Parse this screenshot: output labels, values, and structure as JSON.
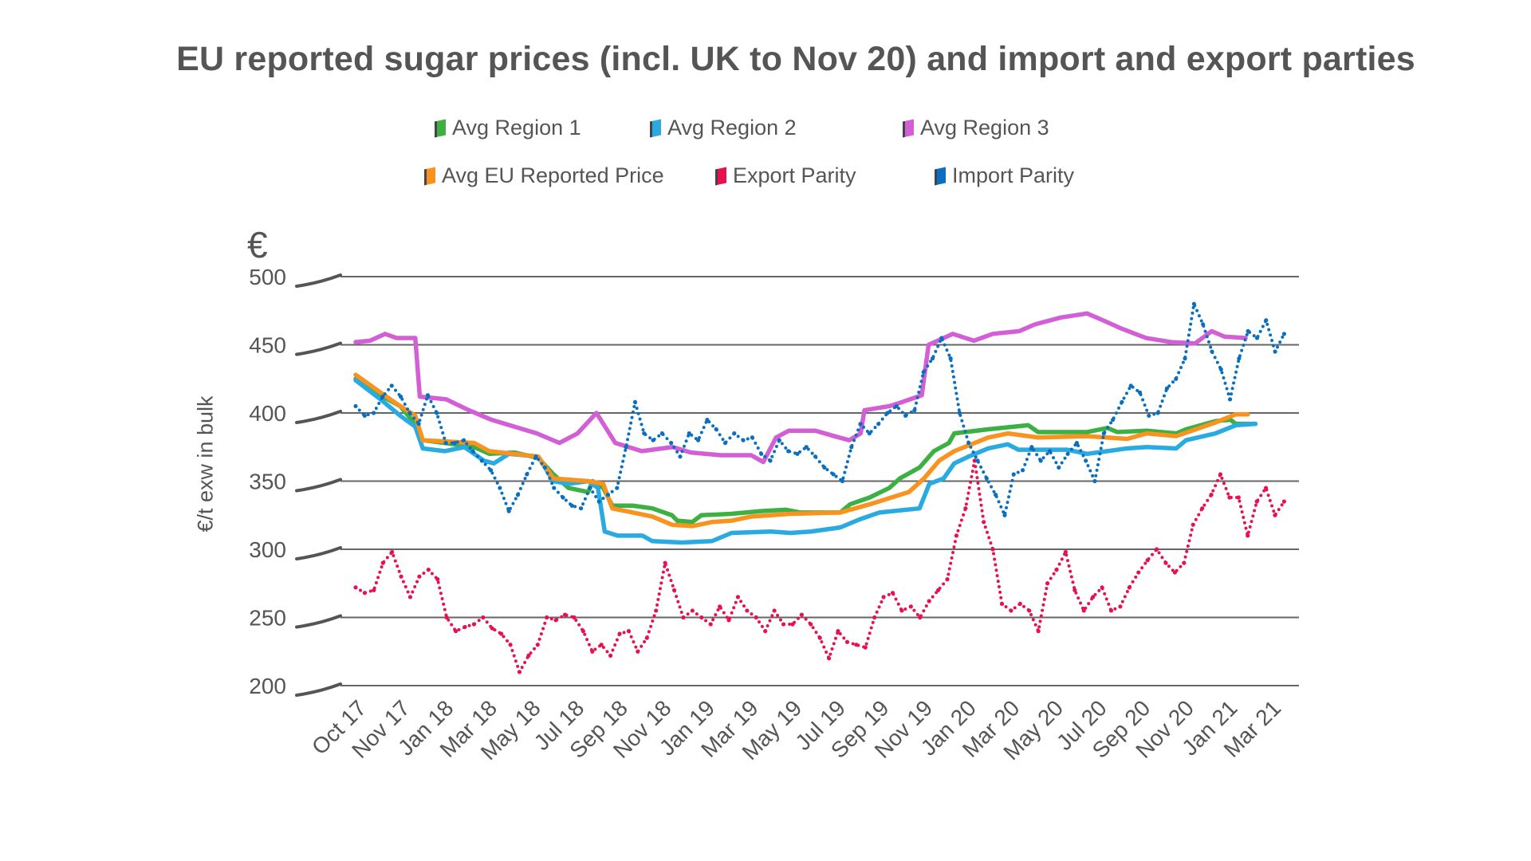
{
  "chart_data": {
    "type": "line",
    "title": "EU reported sugar prices (incl. UK to Nov 20) and import and export parties",
    "ylabel": "€/t exw in bulk",
    "y_unit_symbol": "€",
    "xlabel": "",
    "ylim": [
      200,
      500
    ],
    "yticks": [
      "500",
      "450",
      "400",
      "350",
      "300",
      "250",
      "200"
    ],
    "xticks": [
      "Oct 17",
      "Nov 17",
      "Jan 18",
      "Mar 18",
      "May 18",
      "Jul 18",
      "Sep 18",
      "Nov 18",
      "Jan 19",
      "Mar 19",
      "May 19",
      "Jul 19",
      "Sep 19",
      "Nov 19",
      "Jan 20",
      "Mar 20",
      "May 20",
      "Jul 20",
      "Sep 20",
      "Nov 20",
      "Jan 21",
      "Mar 21"
    ],
    "grid": true,
    "legend_position": "top",
    "series": [
      {
        "name": "Avg Region 1",
        "color": "#3cb043",
        "style": "solid",
        "points": [
          [
            "2017-10-01",
            425
          ],
          [
            "2017-11-04",
            413
          ],
          [
            "2017-11-30",
            405
          ],
          [
            "2017-12-20",
            392
          ],
          [
            "2017-12-30",
            380
          ],
          [
            "2018-01-29",
            378
          ],
          [
            "2018-03-08",
            375
          ],
          [
            "2018-03-28",
            370
          ],
          [
            "2018-05-01",
            371
          ],
          [
            "2018-06-03",
            367
          ],
          [
            "2018-06-23",
            355
          ],
          [
            "2018-07-13",
            345
          ],
          [
            "2018-08-09",
            342
          ],
          [
            "2018-08-15",
            350
          ],
          [
            "2018-08-29",
            345
          ],
          [
            "2018-09-11",
            332
          ],
          [
            "2018-10-08",
            332
          ],
          [
            "2018-11-04",
            330
          ],
          [
            "2018-11-30",
            325
          ],
          [
            "2018-12-07",
            321
          ],
          [
            "2018-12-27",
            320
          ],
          [
            "2019-01-09",
            325
          ],
          [
            "2019-02-19",
            326
          ],
          [
            "2019-03-28",
            328
          ],
          [
            "2019-05-01",
            329
          ],
          [
            "2019-05-20",
            327
          ],
          [
            "2019-07-13",
            327
          ],
          [
            "2019-07-26",
            333
          ],
          [
            "2019-08-22",
            338
          ],
          [
            "2019-09-18",
            345
          ],
          [
            "2019-10-02",
            352
          ],
          [
            "2019-10-28",
            360
          ],
          [
            "2019-11-17",
            372
          ],
          [
            "2019-12-07",
            378
          ],
          [
            "2019-12-14",
            385
          ],
          [
            "2020-01-29",
            388
          ],
          [
            "2020-03-22",
            391
          ],
          [
            "2020-04-05",
            386
          ],
          [
            "2020-06-10",
            386
          ],
          [
            "2020-07-07",
            389
          ],
          [
            "2020-07-20",
            386
          ],
          [
            "2020-08-29",
            387
          ],
          [
            "2020-10-08",
            385
          ],
          [
            "2020-10-21",
            388
          ],
          [
            "2020-11-30",
            394
          ],
          [
            "2020-12-20",
            395
          ],
          [
            "2020-12-27",
            392
          ],
          [
            "2021-01-23",
            392
          ]
        ]
      },
      {
        "name": "Avg Region 2",
        "color": "#29abe2",
        "style": "solid",
        "points": [
          [
            "2017-10-01",
            424
          ],
          [
            "2017-11-04",
            410
          ],
          [
            "2017-11-30",
            398
          ],
          [
            "2017-12-20",
            390
          ],
          [
            "2017-12-30",
            374
          ],
          [
            "2018-01-29",
            372
          ],
          [
            "2018-02-25",
            375
          ],
          [
            "2018-03-21",
            365
          ],
          [
            "2018-04-04",
            363
          ],
          [
            "2018-04-24",
            370
          ],
          [
            "2018-06-03",
            368
          ],
          [
            "2018-06-23",
            350
          ],
          [
            "2018-07-13",
            348
          ],
          [
            "2018-08-09",
            350
          ],
          [
            "2018-08-22",
            345
          ],
          [
            "2018-09-01",
            313
          ],
          [
            "2018-09-18",
            310
          ],
          [
            "2018-10-21",
            310
          ],
          [
            "2018-11-04",
            306
          ],
          [
            "2018-12-13",
            305
          ],
          [
            "2019-01-23",
            306
          ],
          [
            "2019-02-19",
            312
          ],
          [
            "2019-04-11",
            313
          ],
          [
            "2019-05-07",
            312
          ],
          [
            "2019-06-04",
            313
          ],
          [
            "2019-07-13",
            316
          ],
          [
            "2019-08-09",
            322
          ],
          [
            "2019-09-05",
            327
          ],
          [
            "2019-10-28",
            330
          ],
          [
            "2019-11-11",
            348
          ],
          [
            "2019-11-30",
            352
          ],
          [
            "2019-12-14",
            363
          ],
          [
            "2020-01-03",
            368
          ],
          [
            "2020-01-29",
            374
          ],
          [
            "2020-02-25",
            377
          ],
          [
            "2020-03-09",
            373
          ],
          [
            "2020-05-14",
            373
          ],
          [
            "2020-06-10",
            370
          ],
          [
            "2020-07-07",
            372
          ],
          [
            "2020-08-03",
            374
          ],
          [
            "2020-08-29",
            375
          ],
          [
            "2020-10-08",
            374
          ],
          [
            "2020-10-21",
            380
          ],
          [
            "2020-11-30",
            385
          ],
          [
            "2020-12-27",
            391
          ],
          [
            "2021-01-23",
            392
          ]
        ]
      },
      {
        "name": "Avg Region 3",
        "color": "#d35fd6",
        "style": "solid",
        "points": [
          [
            "2017-10-01",
            452
          ],
          [
            "2017-10-20",
            453
          ],
          [
            "2017-11-10",
            458
          ],
          [
            "2017-11-25",
            455
          ],
          [
            "2017-12-20",
            455
          ],
          [
            "2017-12-26",
            412
          ],
          [
            "2018-02-01",
            410
          ],
          [
            "2018-03-01",
            402
          ],
          [
            "2018-04-01",
            395
          ],
          [
            "2018-05-01",
            390
          ],
          [
            "2018-06-01",
            385
          ],
          [
            "2018-07-01",
            378
          ],
          [
            "2018-07-25",
            385
          ],
          [
            "2018-08-20",
            400
          ],
          [
            "2018-09-15",
            378
          ],
          [
            "2018-10-20",
            372
          ],
          [
            "2018-12-01",
            375
          ],
          [
            "2018-12-25",
            371
          ],
          [
            "2019-02-05",
            369
          ],
          [
            "2019-03-15",
            369
          ],
          [
            "2019-04-01",
            364
          ],
          [
            "2019-04-18",
            382
          ],
          [
            "2019-05-05",
            387
          ],
          [
            "2019-06-10",
            387
          ],
          [
            "2019-07-05",
            383
          ],
          [
            "2019-07-25",
            380
          ],
          [
            "2019-08-10",
            385
          ],
          [
            "2019-08-15",
            402
          ],
          [
            "2019-09-18",
            405
          ],
          [
            "2019-10-05",
            408
          ],
          [
            "2019-11-01",
            413
          ],
          [
            "2019-11-10",
            450
          ],
          [
            "2019-12-12",
            458
          ],
          [
            "2020-01-10",
            453
          ],
          [
            "2020-02-05",
            458
          ],
          [
            "2020-03-10",
            460
          ],
          [
            "2020-04-01",
            465
          ],
          [
            "2020-05-05",
            470
          ],
          [
            "2020-06-10",
            473
          ],
          [
            "2020-07-01",
            468
          ],
          [
            "2020-07-25",
            462
          ],
          [
            "2020-08-28",
            455
          ],
          [
            "2020-10-01",
            452
          ],
          [
            "2020-11-03",
            451
          ],
          [
            "2020-11-25",
            460
          ],
          [
            "2020-12-12",
            456
          ],
          [
            "2021-01-10",
            455
          ]
        ]
      },
      {
        "name": "Avg EU Reported Price",
        "color": "#f7931e",
        "style": "solid",
        "points": [
          [
            "2017-10-01",
            428
          ],
          [
            "2017-11-04",
            415
          ],
          [
            "2017-11-30",
            405
          ],
          [
            "2017-12-20",
            398
          ],
          [
            "2017-12-30",
            380
          ],
          [
            "2018-03-08",
            378
          ],
          [
            "2018-03-28",
            372
          ],
          [
            "2018-06-03",
            368
          ],
          [
            "2018-06-23",
            352
          ],
          [
            "2018-08-09",
            350
          ],
          [
            "2018-08-29",
            348
          ],
          [
            "2018-09-11",
            330
          ],
          [
            "2018-10-08",
            327
          ],
          [
            "2018-11-04",
            324
          ],
          [
            "2018-11-30",
            318
          ],
          [
            "2018-12-27",
            317
          ],
          [
            "2019-01-23",
            320
          ],
          [
            "2019-02-19",
            321
          ],
          [
            "2019-03-15",
            324
          ],
          [
            "2019-05-07",
            326
          ],
          [
            "2019-07-13",
            327
          ],
          [
            "2019-08-22",
            333
          ],
          [
            "2019-10-14",
            342
          ],
          [
            "2019-11-04",
            352
          ],
          [
            "2019-11-24",
            365
          ],
          [
            "2019-12-14",
            372
          ],
          [
            "2020-01-29",
            382
          ],
          [
            "2020-02-25",
            385
          ],
          [
            "2020-04-05",
            382
          ],
          [
            "2020-06-10",
            383
          ],
          [
            "2020-08-03",
            381
          ],
          [
            "2020-08-29",
            385
          ],
          [
            "2020-10-08",
            383
          ],
          [
            "2020-11-30",
            393
          ],
          [
            "2020-12-27",
            399
          ],
          [
            "2021-01-13",
            399
          ]
        ]
      },
      {
        "name": "Export Parity",
        "color": "#e8114f",
        "style": "dotted",
        "start": "2017-10-01",
        "end": "2021-03-01",
        "values": [
          272,
          268,
          270,
          290,
          298,
          280,
          265,
          280,
          285,
          278,
          250,
          240,
          243,
          245,
          250,
          242,
          238,
          230,
          210,
          222,
          230,
          250,
          248,
          252,
          250,
          240,
          225,
          230,
          222,
          238,
          240,
          225,
          235,
          255,
          290,
          270,
          250,
          255,
          250,
          245,
          258,
          248,
          265,
          255,
          250,
          240,
          255,
          245,
          245,
          252,
          245,
          235,
          220,
          240,
          232,
          230,
          228,
          250,
          265,
          268,
          255,
          258,
          250,
          262,
          270,
          278,
          310,
          330,
          365,
          320,
          300,
          260,
          255,
          260,
          255,
          240,
          275,
          285,
          298,
          270,
          255,
          265,
          272,
          255,
          258,
          272,
          283,
          292,
          300,
          290,
          283,
          290,
          318,
          330,
          340,
          355,
          338,
          338,
          310,
          335,
          345,
          325,
          335
        ]
      },
      {
        "name": "Import Parity",
        "color": "#0a6fbf",
        "style": "dotted",
        "start": "2017-10-01",
        "end": "2021-03-01",
        "values": [
          405,
          398,
          400,
          412,
          420,
          412,
          400,
          392,
          413,
          400,
          378,
          378,
          380,
          372,
          365,
          358,
          345,
          328,
          340,
          355,
          368,
          360,
          345,
          338,
          332,
          330,
          345,
          335,
          340,
          345,
          375,
          408,
          385,
          380,
          385,
          378,
          368,
          385,
          380,
          395,
          388,
          378,
          385,
          380,
          382,
          370,
          365,
          380,
          372,
          370,
          375,
          368,
          360,
          355,
          350,
          375,
          392,
          385,
          392,
          400,
          405,
          398,
          402,
          430,
          440,
          455,
          440,
          400,
          378,
          365,
          352,
          340,
          325,
          355,
          358,
          375,
          365,
          372,
          360,
          370,
          378,
          365,
          350,
          385,
          395,
          408,
          420,
          415,
          398,
          400,
          418,
          425,
          440,
          480,
          465,
          445,
          432,
          410,
          440,
          460,
          455,
          468,
          445,
          458
        ]
      }
    ]
  }
}
